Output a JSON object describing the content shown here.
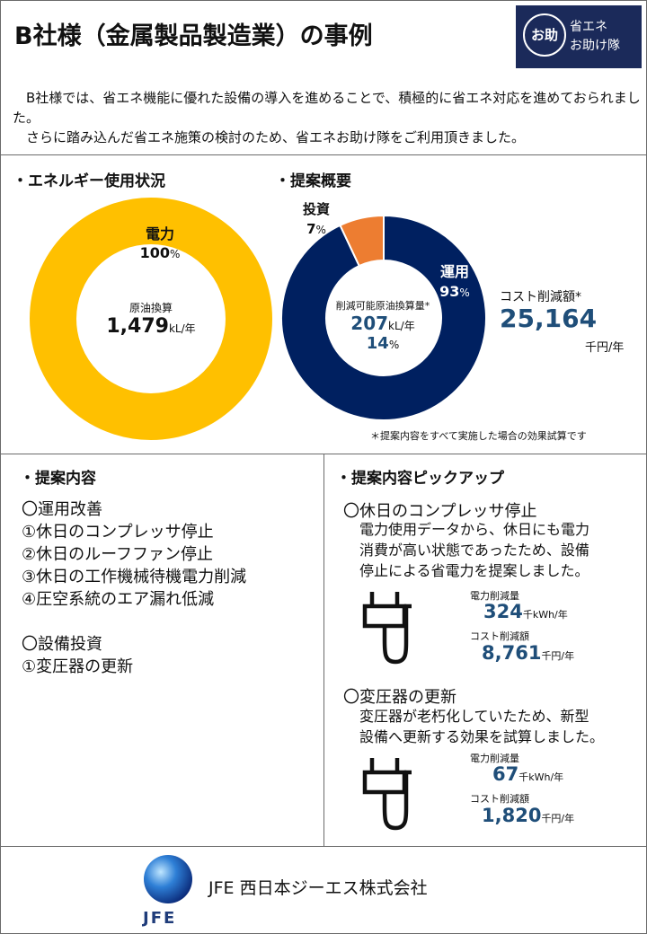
{
  "header": {
    "title": "B社様（金属製品製造業）の事例",
    "logo_mark": "お助",
    "logo_line1": "省エネ",
    "logo_line2": "お助け隊"
  },
  "intro": {
    "para1": "　B社様では、省エネ機能に優れた設備の導入を進めることで、積極的に省エネ対応を進めておられました。",
    "para2": "　さらに踏み込んだ省エネ施策の検討のため、省エネお助け隊をご利用頂きました。"
  },
  "energy": {
    "heading": "・エネルギー使用状況",
    "segment_label": "電力",
    "segment_pct": "100",
    "pct_unit": "%",
    "center_label": "原油換算",
    "center_value": "1,479",
    "center_unit": "kL/年"
  },
  "proposal": {
    "heading": "・提案概要",
    "invest_label": "投資",
    "invest_pct": "7",
    "ops_label": "運用",
    "ops_pct": "93",
    "pct_unit": "%",
    "center_label": "削減可能原油換算量*",
    "center_value": "207",
    "center_unit": "kL/年",
    "center_pct": "14",
    "cost_label": "コスト削減額*",
    "cost_value": "25,164",
    "cost_unit": "千円/年",
    "note": "＊提案内容をすべて実施した場合の効果試算です"
  },
  "chart_data": [
    {
      "type": "pie",
      "title": "エネルギー使用状況",
      "categories": [
        "電力"
      ],
      "values": [
        100
      ],
      "colors": [
        "#ffc000"
      ]
    },
    {
      "type": "pie",
      "title": "提案概要",
      "categories": [
        "運用",
        "投資"
      ],
      "values": [
        93,
        7
      ],
      "colors": [
        "#002060",
        "#ed7d31"
      ]
    }
  ],
  "content": {
    "heading": "・提案内容",
    "items": [
      "〇運用改善",
      "①休日のコンプレッサ停止",
      "②休日のルーフファン停止",
      "③休日の工作機械待機電力削減",
      "④圧空系統のエア漏れ低減",
      "",
      "〇設備投資",
      "①変圧器の更新"
    ]
  },
  "pickup": {
    "heading": "・提案内容ピックアップ",
    "items": [
      {
        "title": "〇休日のコンプレッサ停止",
        "desc1": "電力使用データから、休日にも電力",
        "desc2": "消費が高い状態であったため、設備",
        "desc3": "停止による省電力を提案しました。",
        "power_label": "電力削減量",
        "power_value": "324",
        "power_unit": "千kWh/年",
        "cost_label": "コスト削減額",
        "cost_value": "8,761",
        "cost_unit": "千円/年"
      },
      {
        "title": "〇変圧器の更新",
        "desc1": "変圧器が老朽化していたため、新型",
        "desc2": "設備へ更新する効果を試算しました。",
        "power_label": "電力削減量",
        "power_value": "67",
        "power_unit": "千kWh/年",
        "cost_label": "コスト削減額",
        "cost_value": "1,820",
        "cost_unit": "千円/年"
      }
    ]
  },
  "footer": {
    "company": "JFE 西日本ジーエス株式会社",
    "brand": "JFE"
  }
}
